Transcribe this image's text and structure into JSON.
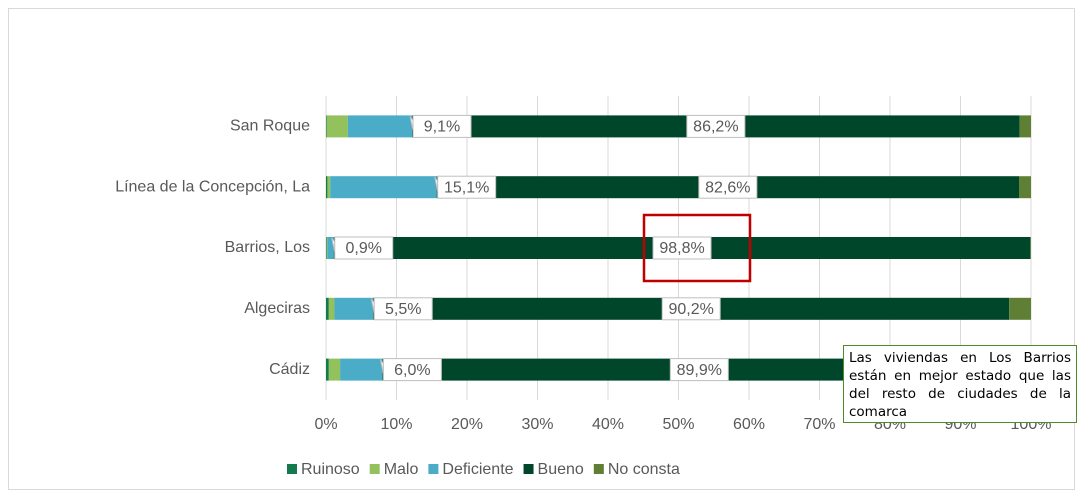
{
  "chart_data": {
    "type": "stacked-barh",
    "categories": [
      "San Roque",
      "Línea de la Concepción, La",
      "Barrios, Los",
      "Algeciras",
      "Cádiz"
    ],
    "series": [
      {
        "name": "Ruinoso",
        "color": "#127a4c",
        "values": [
          0.1,
          0.2,
          0.1,
          0.4,
          0.4
        ]
      },
      {
        "name": "Malo",
        "color": "#93c15b",
        "values": [
          3.0,
          0.4,
          0.1,
          0.8,
          1.6
        ]
      },
      {
        "name": "Deficiente",
        "color": "#4aacc6",
        "values": [
          9.1,
          15.1,
          0.9,
          5.5,
          6.0
        ],
        "value_labels": [
          "9,1%",
          "15,1%",
          "0,9%",
          "5,5%",
          "6,0%"
        ]
      },
      {
        "name": "Bueno",
        "color": "#00462a",
        "values": [
          86.2,
          82.6,
          98.8,
          90.2,
          89.9
        ],
        "value_labels": [
          "86,2%",
          "82,6%",
          "98,8%",
          "90,2%",
          "89,9%"
        ]
      },
      {
        "name": "No consta",
        "color": "#5f7f35",
        "values": [
          1.6,
          1.7,
          0.1,
          3.1,
          2.1
        ]
      }
    ],
    "xlim": [
      0,
      100
    ],
    "xticks": [
      {
        "value": 0,
        "label": "0%"
      },
      {
        "value": 10,
        "label": "10%"
      },
      {
        "value": 20,
        "label": "20%"
      },
      {
        "value": 30,
        "label": "30%"
      },
      {
        "value": 40,
        "label": "40%"
      },
      {
        "value": 50,
        "label": "50%"
      },
      {
        "value": 60,
        "label": "60%"
      },
      {
        "value": 70,
        "label": "70%"
      },
      {
        "value": 80,
        "label": "80%"
      },
      {
        "value": 90,
        "label": "90%"
      },
      {
        "value": 100,
        "label": "100%"
      }
    ],
    "grid": true,
    "legend": "bottom",
    "annotation": "Las viviendas en Los Barrios están en mejor estado que las del resto de ciudades de la comarca"
  }
}
